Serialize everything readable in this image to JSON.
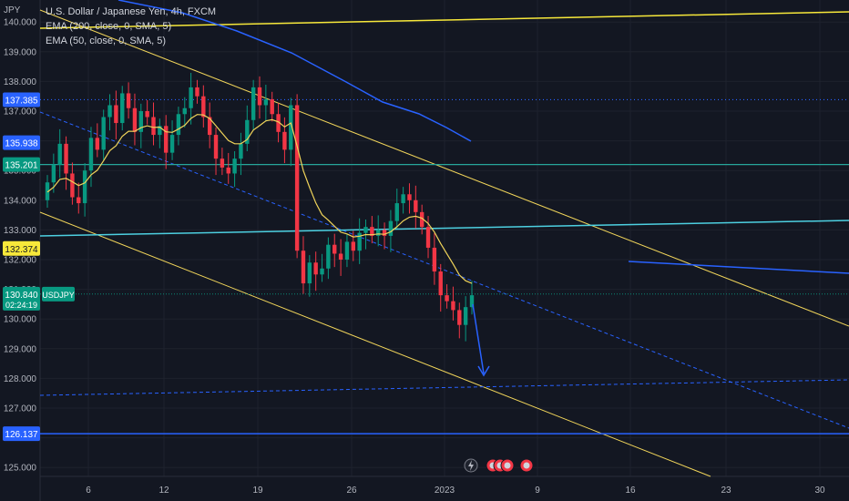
{
  "header": {
    "title": "U.S. Dollar / Japanese Yen, 4h, FXCM",
    "ema200": "EMA (200, close, 0, SMA, 5)",
    "ema50": "EMA (50, close, 0, SMA, 5)",
    "axis_symbol": "JPY"
  },
  "chart_data": {
    "type": "candlestick",
    "title": "U.S. Dollar / Japanese Yen, 4h, FXCM",
    "ylim": [
      124.8,
      140.1
    ],
    "y_ticks": [
      "125.000",
      "126.000",
      "127.000",
      "128.000",
      "129.000",
      "130.000",
      "131.000",
      "132.000",
      "133.000",
      "134.000",
      "135.000",
      "136.000",
      "137.000",
      "138.000",
      "139.000",
      "140.000"
    ],
    "x_ticks": [
      "6",
      "12",
      "19",
      "26",
      "2023",
      "9",
      "16",
      "23",
      "30"
    ],
    "price_tags": [
      {
        "label": "137.385",
        "value": 137.385,
        "color": "#2962ff"
      },
      {
        "label": "135.938",
        "value": 135.938,
        "color": "#2962ff"
      },
      {
        "label": "135.201",
        "value": 135.201,
        "color": "#089981"
      },
      {
        "label": "132.374",
        "value": 132.374,
        "color": "#f7e83a"
      },
      {
        "label": "130.840",
        "value": 130.84,
        "color": "#089981",
        "symbol": "USDJPY",
        "countdown": "02:24:19"
      },
      {
        "label": "126.137",
        "value": 126.137,
        "color": "#2962ff"
      }
    ],
    "close_series": [
      134.6,
      135.2,
      135.9,
      134.9,
      134.1,
      133.9,
      135.0,
      136.1,
      135.7,
      136.8,
      137.2,
      136.6,
      137.6,
      137.1,
      136.3,
      137.0,
      136.8,
      136.2,
      136.5,
      135.6,
      136.2,
      136.9,
      137.1,
      137.8,
      137.5,
      136.8,
      136.2,
      135.4,
      135.1,
      134.9,
      135.4,
      135.9,
      136.7,
      137.8,
      137.2,
      137.4,
      136.9,
      136.3,
      135.7,
      137.2,
      132.3,
      131.2,
      131.9,
      131.5,
      131.7,
      132.5,
      132.2,
      132.0,
      132.6,
      132.3,
      132.9,
      133.1,
      132.8,
      133.0,
      132.8,
      133.3,
      133.9,
      134.2,
      134.0,
      133.6,
      133.1,
      132.4,
      131.6,
      130.8,
      130.6,
      130.3,
      129.8,
      130.4,
      130.8
    ],
    "series": [
      {
        "name": "EMA (200, close, 0, SMA, 5)",
        "color": "#2962ff"
      },
      {
        "name": "EMA (50, close, 0, SMA, 5)",
        "color": "#f0d45a"
      }
    ]
  },
  "colors": {
    "up": "#089981",
    "down": "#f23645",
    "grid": "#1e222d"
  }
}
